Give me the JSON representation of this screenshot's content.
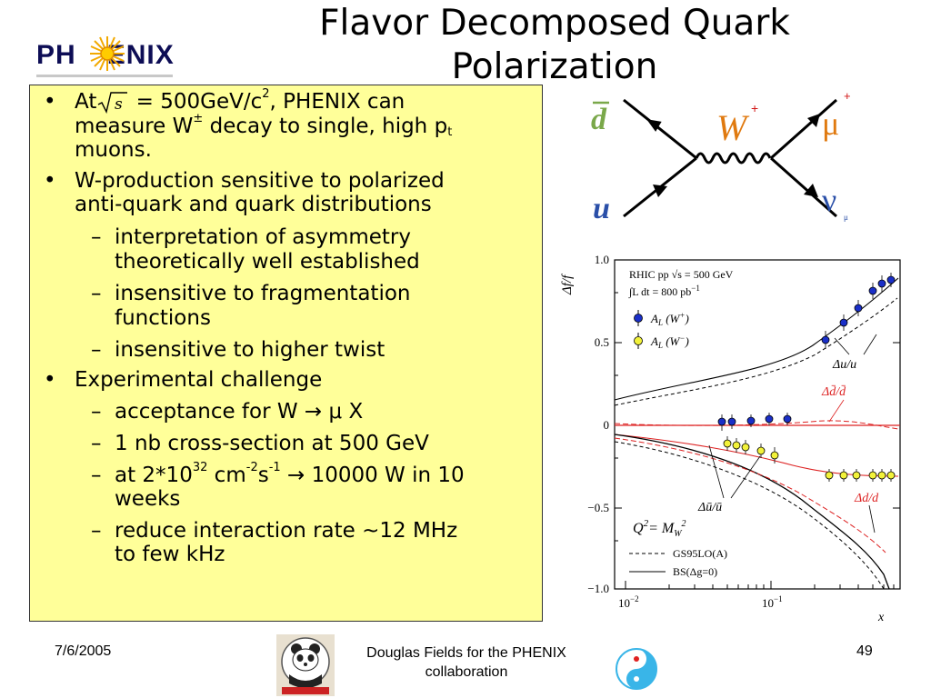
{
  "logo": {
    "left": "PH",
    "right": "ENIX"
  },
  "slide": {
    "title": "Flavor Decomposed Quark Polarization"
  },
  "bullets": {
    "b1_l1_a": "At",
    "b1_l1_b": " = 500GeV/c",
    "b1_l1_sup": "2",
    "b1_l1_c": ", PHENIX can",
    "b1_l2_a": "measure W",
    "b1_l2_sup": "±",
    "b1_l2_b": " decay to single, high p",
    "b1_l2_sub": "t",
    "b1_l3": "muons.",
    "b2_l1": "W-production sensitive to polarized",
    "b2_l2": "anti-quark and quark distributions",
    "s1_l1": "interpretation of asymmetry",
    "s1_l2": "theoretically well established",
    "s2_l1": "insensitive to fragmentation",
    "s2_l2": "functions",
    "s3_l1": "insensitive to higher twist",
    "b3_l1": "Experimental challenge",
    "s4_l1": "acceptance for W → μ X",
    "s5_l1": "1 nb cross-section at 500 GeV",
    "s6_a": "at 2*10",
    "s6_sup1": "32",
    "s6_b": " cm",
    "s6_sup2": "-2",
    "s6_c": "s",
    "s6_sup3": "-1",
    "s6_d": " → 10000 W in 10",
    "s6_l2": "weeks",
    "s7_l1": "reduce interaction rate ~12 MHz",
    "s7_l2": "to few kHz",
    "sqrt_symbol": "s",
    "bullet_mark": "•",
    "dash_mark": "–"
  },
  "feynman": {
    "dbar": "d",
    "u": "u",
    "W": "W",
    "W_charge": "+",
    "mu": "μ",
    "mu_charge": "+",
    "nu": "ν",
    "nu_sub": "μ"
  },
  "plot": {
    "y_label": "Δf/f",
    "x_label": "x",
    "y_ticks": [
      "1.0",
      "0.5",
      "0",
      "−0.5",
      "−1.0"
    ],
    "x_ticks": [
      "10",
      "10"
    ],
    "x_tick_exp": [
      "−2",
      "−1"
    ],
    "legend_line1": "RHIC pp √s = 500 GeV",
    "legend_line2": "∫L dt = 800 pb",
    "legend_line2_exp": "−1",
    "series_wplus": "A",
    "series_wplus_sub": "L",
    "series_wplus_rest": " (W",
    "series_wplus_sup": "+",
    "series_wplus_close": ")",
    "series_wminus": "A",
    "series_wminus_sub": "L",
    "series_wminus_rest": " (W",
    "series_wminus_sup": "−",
    "series_wminus_close": ")",
    "ann_du": "Δu/u",
    "ann_dd": "Δd̄/d̄",
    "ann_dubar": "Δū/ū",
    "ann_ddown": "Δd/d",
    "q2_a": "Q",
    "q2_sup": "2",
    "q2_b": "= M",
    "q2_sub": "W",
    "q2_sup2": "2",
    "model1": "GS95LO(A)",
    "model2": "BS(Δg=0)"
  },
  "footer": {
    "date": "7/6/2005",
    "credit_l1": "Douglas Fields for the PHENIX",
    "credit_l2": "collaboration",
    "page": "49"
  },
  "colors": {
    "textbox_bg": "#ffff99",
    "feyn_green": "#7aa84a",
    "feyn_blue": "#2a4fa8",
    "feyn_orange": "#e07a10",
    "feyn_red": "#d21414",
    "plot_red": "#dd2222",
    "plot_blue": "#1a2fc8",
    "plot_yellow": "#f2f23a"
  }
}
